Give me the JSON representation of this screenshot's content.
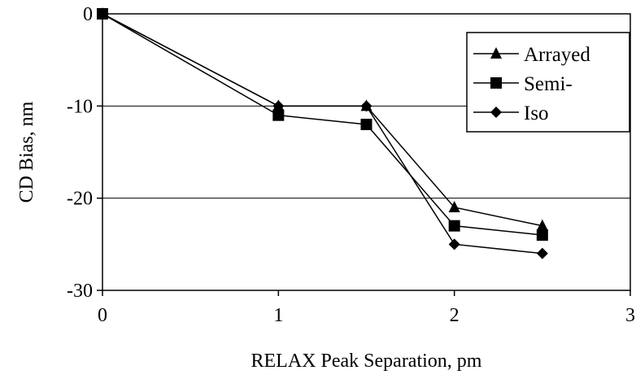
{
  "chart_data": {
    "type": "line",
    "title": "",
    "xlabel": "RELAX Peak Separation, pm",
    "ylabel": "CD Bias, nm",
    "xlim": [
      0,
      3
    ],
    "ylim": [
      -30,
      0
    ],
    "xticks": [
      0,
      1,
      2,
      3
    ],
    "yticks": [
      0,
      -10,
      -20,
      -30
    ],
    "xtick_labels": [
      "0",
      "1",
      "2",
      "3"
    ],
    "ytick_labels": [
      "0",
      "-10",
      "-20",
      "-30"
    ],
    "grid": "horizontal",
    "legend_position": "top-right",
    "series": [
      {
        "name": "Arrayed",
        "marker": "triangle",
        "color": "#000000",
        "x": [
          0,
          1,
          1.5,
          2,
          2.5
        ],
        "y": [
          0,
          -10,
          -10,
          -21,
          -23
        ]
      },
      {
        "name": "Semi-",
        "marker": "square",
        "color": "#000000",
        "x": [
          0,
          1,
          1.5,
          2,
          2.5
        ],
        "y": [
          0,
          -11,
          -12,
          -23,
          -24
        ]
      },
      {
        "name": "Iso",
        "marker": "diamond",
        "color": "#000000",
        "x": [
          0,
          1,
          1.5,
          2,
          2.5
        ],
        "y": [
          0,
          -10,
          -10,
          -25,
          -26
        ]
      }
    ]
  }
}
